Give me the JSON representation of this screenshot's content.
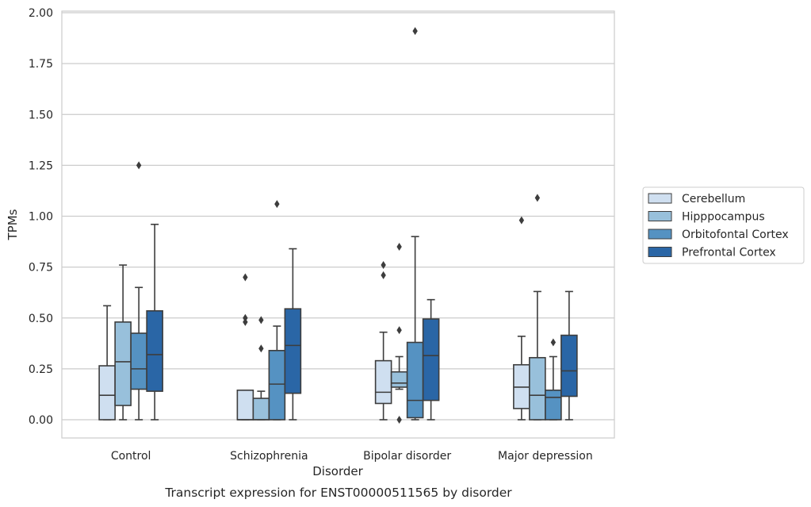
{
  "chart_data": {
    "type": "box",
    "caption": "Transcript expression for ENST00000511565 by disorder",
    "xlabel": "Disorder",
    "ylabel": "TPMs",
    "ylim": [
      -0.09,
      2.01
    ],
    "yticks": [
      "0.00",
      "0.25",
      "0.50",
      "0.75",
      "1.00",
      "1.25",
      "1.50",
      "1.75",
      "2.00"
    ],
    "ytick_values": [
      0,
      0.25,
      0.5,
      0.75,
      1.0,
      1.25,
      1.5,
      1.75,
      2.0
    ],
    "grid": "horizontal",
    "legend_position": "right",
    "categories": [
      "Control",
      "Schizophrenia",
      "Bipolar disorder",
      "Major depression"
    ],
    "series": [
      {
        "name": "Cerebellum",
        "color": "#cfdff0",
        "boxes": [
          {
            "min": 0.0,
            "q1": 0.0,
            "median": 0.12,
            "q3": 0.265,
            "max": 0.56,
            "outliers": []
          },
          {
            "min": 0.0,
            "q1": 0.0,
            "median": 0.0,
            "q3": 0.145,
            "max": 0.145,
            "outliers": [
              0.7,
              0.5,
              0.48
            ]
          },
          {
            "min": 0.0,
            "q1": 0.08,
            "median": 0.135,
            "q3": 0.29,
            "max": 0.43,
            "outliers": [
              0.76,
              0.71
            ]
          },
          {
            "min": 0.0,
            "q1": 0.055,
            "median": 0.16,
            "q3": 0.27,
            "max": 0.41,
            "outliers": [
              0.98
            ]
          }
        ]
      },
      {
        "name": "Hipppocampus",
        "color": "#98c0db",
        "boxes": [
          {
            "min": 0.0,
            "q1": 0.07,
            "median": 0.285,
            "q3": 0.48,
            "max": 0.76,
            "outliers": []
          },
          {
            "min": 0.0,
            "q1": 0.0,
            "median": 0.0,
            "q3": 0.105,
            "max": 0.14,
            "outliers": [
              0.49,
              0.35
            ]
          },
          {
            "min": 0.15,
            "q1": 0.16,
            "median": 0.18,
            "q3": 0.235,
            "max": 0.31,
            "outliers": [
              0.85,
              0.44,
              0.0
            ]
          },
          {
            "min": 0.0,
            "q1": 0.0,
            "median": 0.12,
            "q3": 0.305,
            "max": 0.63,
            "outliers": [
              1.09
            ]
          }
        ]
      },
      {
        "name": "Orbitofontal Cortex",
        "color": "#5592c2",
        "boxes": [
          {
            "min": 0.0,
            "q1": 0.15,
            "median": 0.25,
            "q3": 0.425,
            "max": 0.65,
            "outliers": [
              1.25
            ]
          },
          {
            "min": 0.0,
            "q1": 0.0,
            "median": 0.175,
            "q3": 0.34,
            "max": 0.46,
            "outliers": [
              1.06
            ]
          },
          {
            "min": 0.0,
            "q1": 0.01,
            "median": 0.095,
            "q3": 0.38,
            "max": 0.9,
            "outliers": [
              1.91
            ]
          },
          {
            "min": 0.0,
            "q1": 0.0,
            "median": 0.11,
            "q3": 0.145,
            "max": 0.31,
            "outliers": [
              0.38
            ]
          }
        ]
      },
      {
        "name": "Prefrontal Cortex",
        "color": "#2a66a6",
        "boxes": [
          {
            "min": 0.0,
            "q1": 0.14,
            "median": 0.32,
            "q3": 0.535,
            "max": 0.96,
            "outliers": []
          },
          {
            "min": 0.0,
            "q1": 0.13,
            "median": 0.365,
            "q3": 0.545,
            "max": 0.84,
            "outliers": []
          },
          {
            "min": 0.0,
            "q1": 0.095,
            "median": 0.315,
            "q3": 0.495,
            "max": 0.59,
            "outliers": []
          },
          {
            "min": 0.0,
            "q1": 0.115,
            "median": 0.24,
            "q3": 0.415,
            "max": 0.63,
            "outliers": []
          }
        ]
      }
    ]
  }
}
